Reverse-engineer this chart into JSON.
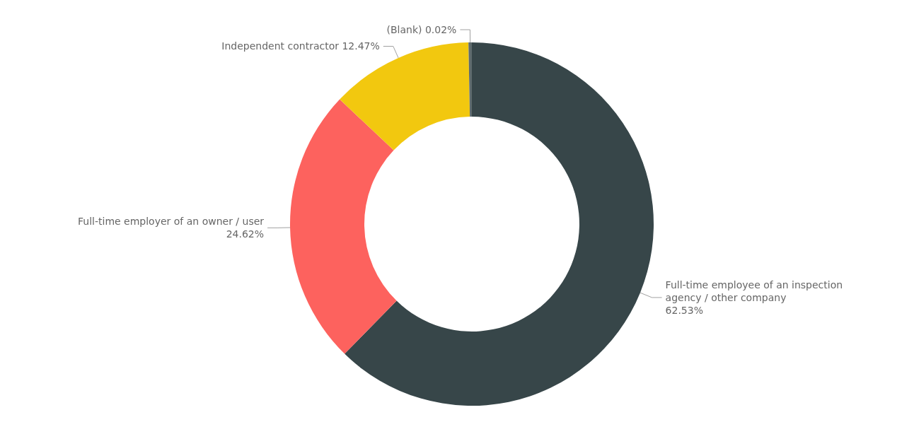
{
  "chart_data": {
    "type": "donut",
    "categories": [
      "Full-time employee of an inspection agency / other company",
      "Full-time employer of an owner / user",
      "Independent contractor",
      "(Blank)"
    ],
    "values": [
      62.53,
      24.62,
      12.47,
      0.02
    ],
    "value_labels": [
      "62.53%",
      "24.62%",
      "12.47%",
      "0.02%"
    ],
    "colors": [
      "#374649",
      "#fd625e",
      "#f2c80f",
      "#5f6b6d"
    ],
    "legend": false
  }
}
